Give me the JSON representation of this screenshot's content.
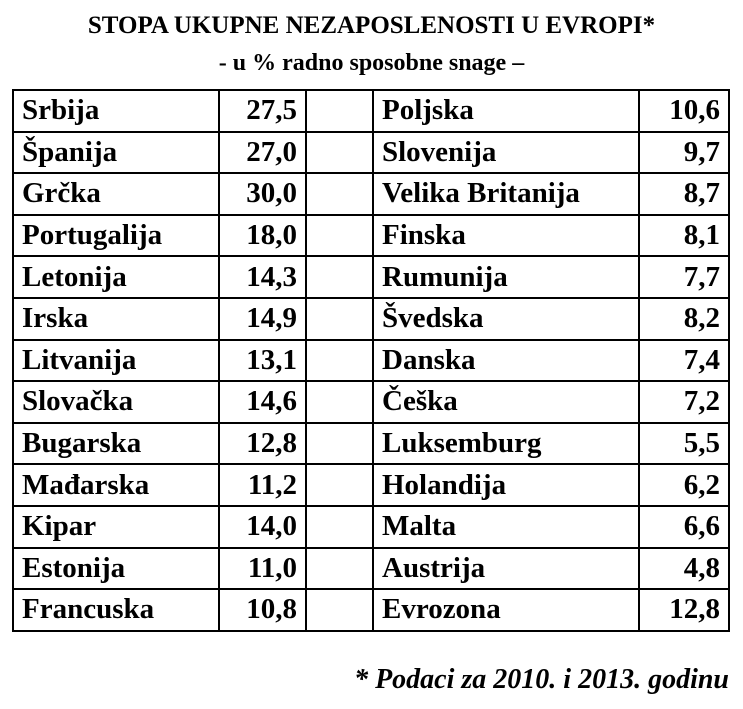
{
  "header": {
    "title": "STOPA UKUPNE NEZAPOSLENOSTI U EVROPI*",
    "subtitle": "- u % radno sposobne snage –"
  },
  "table": {
    "rows": [
      [
        "Srbija",
        "27,5",
        "Poljska",
        "10,6"
      ],
      [
        "Španija",
        "27,0",
        "Slovenija",
        "9,7"
      ],
      [
        "Grčka",
        "30,0",
        "Velika Britanija",
        "8,7"
      ],
      [
        "Portugalija",
        "18,0",
        "Finska",
        "8,1"
      ],
      [
        "Letonija",
        "14,3",
        "Rumunija",
        "7,7"
      ],
      [
        "Irska",
        "14,9",
        "Švedska",
        "8,2"
      ],
      [
        "Litvanija",
        "13,1",
        "Danska",
        "7,4"
      ],
      [
        "Slovačka",
        "14,6",
        "Češka",
        "7,2"
      ],
      [
        "Bugarska",
        "12,8",
        "Luksemburg",
        "5,5"
      ],
      [
        "Mađarska",
        "11,2",
        "Holandija",
        "6,2"
      ],
      [
        "Kipar",
        "14,0",
        "Malta",
        "6,6"
      ],
      [
        "Estonija",
        "11,0",
        "Austrija",
        "4,8"
      ],
      [
        "Francuska",
        "10,8",
        "Evrozona",
        "12,8"
      ]
    ]
  },
  "footnote": "* Podaci za 2010. i 2013. godinu"
}
